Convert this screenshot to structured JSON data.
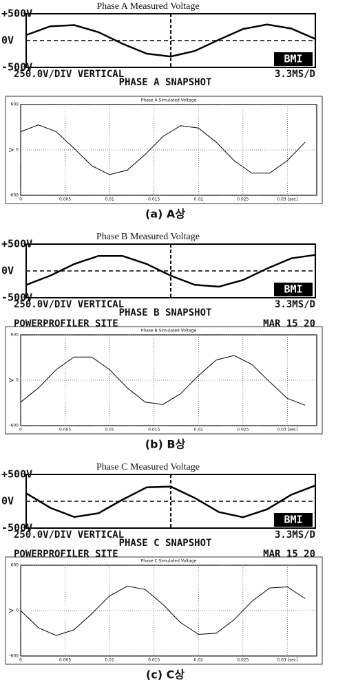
{
  "chart_data": [
    {
      "type": "line",
      "title": "Phase A Measured Voltage",
      "color": "#000000",
      "ylim": [
        -500,
        500
      ],
      "yticks": [
        {
          "value": 500,
          "label": "+500V"
        },
        {
          "value": 0,
          "label": "0V"
        },
        {
          "value": -500,
          "label": "-500V"
        }
      ],
      "values": [
        103,
        267,
        289,
        156,
        -59,
        -244,
        -298,
        -193,
        15,
        215,
        300,
        225,
        30
      ],
      "scale_label": "250.0V/DIV VERTICAL",
      "time_label": "3.3MS/D",
      "snapshot_label": "PHASE A SNAPSHOT",
      "logo": "BMI"
    },
    {
      "type": "line",
      "title": "Phase A Simulated Voltage",
      "ylabel": "V",
      "color": "#000000",
      "grid": true,
      "x": [
        0,
        0.002,
        0.004,
        0.006,
        0.008,
        0.01,
        0.012,
        0.014,
        0.016,
        0.018,
        0.02,
        0.022,
        0.024,
        0.026,
        0.028,
        0.03,
        0.032
      ],
      "values": [
        241,
        330,
        241,
        21,
        -210,
        -327,
        -267,
        -62,
        177,
        320,
        289,
        102,
        -141,
        -307,
        -307,
        -141,
        102
      ],
      "xlim": [
        0,
        0.0333
      ],
      "ylim": [
        -600,
        600
      ],
      "yticks": [
        -600,
        0,
        600
      ],
      "xticks": [
        0,
        0.005,
        0.01,
        0.015,
        0.02,
        0.025,
        {
          "value": 0.03,
          "label": "0.03 [sec]"
        }
      ],
      "caption": "(a) A상"
    },
    {
      "type": "line",
      "title": "Phase B Measured Voltage",
      "color": "#000000",
      "ylim": [
        -500,
        500
      ],
      "yticks": [
        {
          "value": 500,
          "label": "+500V"
        },
        {
          "value": 0,
          "label": "0V"
        },
        {
          "value": -500,
          "label": "-500V"
        }
      ],
      "values": [
        -260,
        -88,
        130,
        279,
        279,
        130,
        -88,
        -260,
        -293,
        -169,
        45,
        235,
        299
      ],
      "scale_label": "250.0V/DIV VERTICAL",
      "time_label": "3.3MS/D",
      "snapshot_label": "PHASE B SNAPSHOT",
      "logo": "BMI",
      "site_label": "POWERPROFILER SITE",
      "date_label": "MAR 15 20"
    },
    {
      "type": "line",
      "title": "Phase B Simulated Voltage",
      "ylabel": "V",
      "color": "#000000",
      "grid": true,
      "x": [
        0,
        0.002,
        0.004,
        0.006,
        0.008,
        0.01,
        0.012,
        0.014,
        0.016,
        0.018,
        0.02,
        0.022,
        0.024,
        0.026,
        0.028,
        0.03,
        0.032
      ],
      "values": [
        -289,
        -102,
        141,
        307,
        307,
        141,
        -102,
        -289,
        -320,
        -177,
        62,
        267,
        327,
        210,
        -21,
        -241,
        -330
      ],
      "xlim": [
        0,
        0.0333
      ],
      "ylim": [
        -600,
        600
      ],
      "yticks": [
        -600,
        0,
        600
      ],
      "xticks": [
        0,
        0.005,
        0.01,
        0.015,
        0.02,
        0.025,
        {
          "value": 0.03,
          "label": "0.03 [sec]"
        }
      ],
      "caption": "(b) B상"
    },
    {
      "type": "line",
      "title": "Phase C Measured Voltage",
      "color": "#000000",
      "ylim": [
        -500,
        500
      ],
      "yticks": [
        {
          "value": 500,
          "label": "+500V"
        },
        {
          "value": 0,
          "label": "0V"
        },
        {
          "value": -500,
          "label": "-500V"
        }
      ],
      "values": [
        150,
        -122,
        -293,
        -223,
        31,
        260,
        274,
        62,
        -201,
        -298,
        -150,
        122,
        293
      ],
      "scale_label": "250.0V/DIV VERTICAL",
      "time_label": "3.3MS/D",
      "snapshot_label": "PHASE C SNAPSHOT",
      "logo": "BMI",
      "site_label": "POWERPROFILER SITE",
      "date_label": "MAR 15 20"
    },
    {
      "type": "line",
      "title": "Phase C Simulated Voltage",
      "ylabel": "V",
      "color": "#000000",
      "grid": true,
      "x": [
        0,
        0.002,
        0.004,
        0.006,
        0.008,
        0.01,
        0.012,
        0.014,
        0.016,
        0.018,
        0.02,
        0.022,
        0.024,
        0.026,
        0.028,
        0.03,
        0.032
      ],
      "values": [
        0,
        -226,
        -329,
        -254,
        -41,
        194,
        324,
        279,
        82,
        -159,
        -314,
        -299,
        -121,
        121,
        299,
        314,
        159
      ],
      "xlim": [
        0,
        0.0333
      ],
      "ylim": [
        -600,
        600
      ],
      "yticks": [
        -600,
        0,
        600
      ],
      "xticks": [
        0,
        0.005,
        0.01,
        0.015,
        0.02,
        0.025,
        {
          "value": 0.03,
          "label": "0.03 [sec]"
        }
      ],
      "caption": "(c) C상"
    }
  ]
}
